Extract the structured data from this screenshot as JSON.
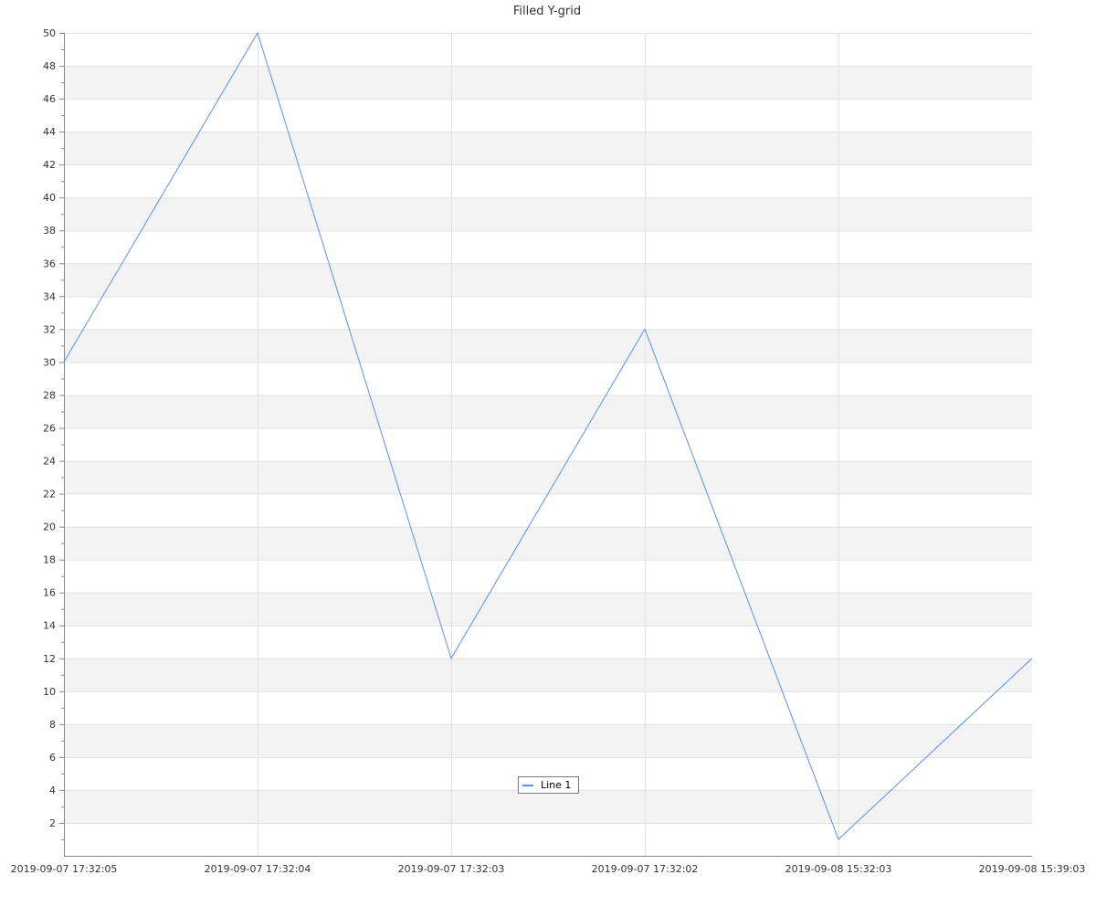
{
  "chart_data": {
    "type": "line",
    "title": "Filled Y-grid",
    "categories": [
      "2019-09-07 17:32:05",
      "2019-09-07 17:32:04",
      "2019-09-07 17:32:03",
      "2019-09-07 17:32:02",
      "2019-09-08 15:32:03",
      "2019-09-08 15:39:03"
    ],
    "series": [
      {
        "name": "Line 1",
        "values": [
          30,
          50,
          12,
          32,
          1,
          12
        ],
        "color": "#5b8ff9"
      }
    ],
    "ylim": [
      0,
      50
    ],
    "ytick_step": 2,
    "grid": true,
    "grid_fill": "alternating",
    "grid_fill_color": "#f3f3f3",
    "legend": "bottom-center"
  }
}
